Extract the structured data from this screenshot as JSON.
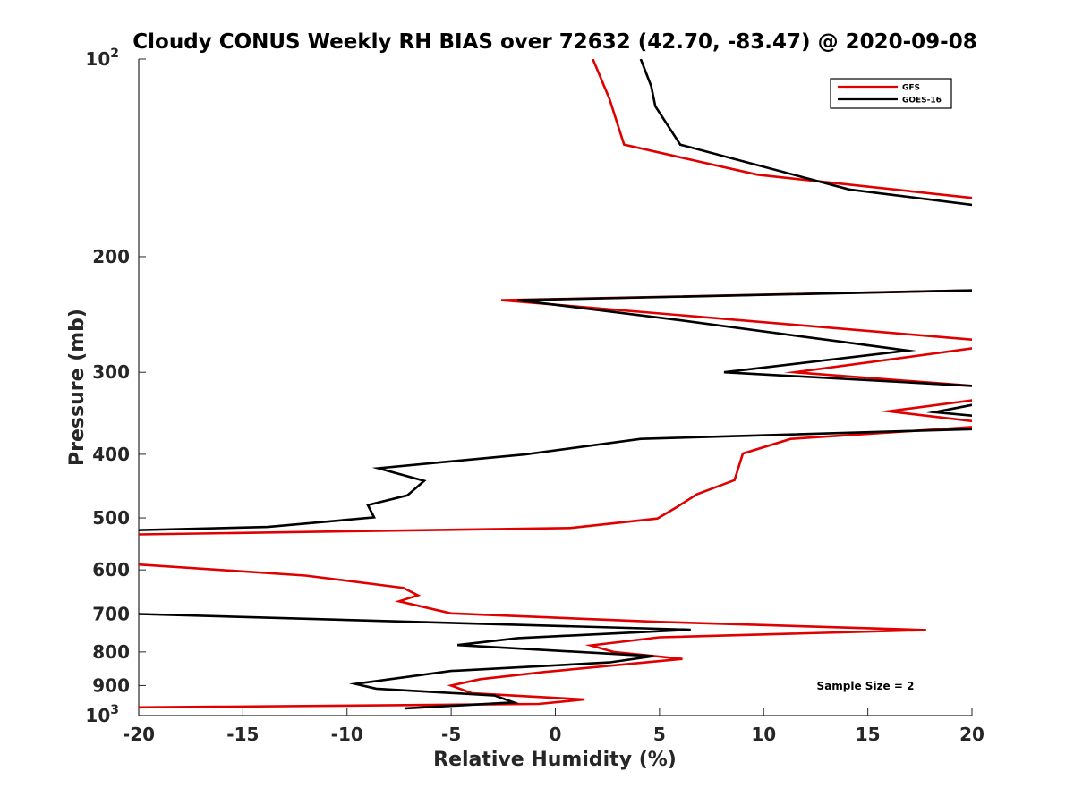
{
  "chart_data": {
    "type": "line",
    "title": "Cloudy CONUS Weekly RH BIAS over 72632 (42.70, -83.47) @ 2020-09-08",
    "xlabel": "Relative Humidity (%)",
    "ylabel": "Pressure (mb)",
    "xlim": [
      -20,
      20
    ],
    "ylim": [
      100,
      1000
    ],
    "yscale": "log",
    "yreversed": true,
    "grid": false,
    "legend_position": "top-right",
    "x_ticks": [
      "-20",
      "-15",
      "-10",
      "-5",
      "0",
      "5",
      "10",
      "15",
      "20"
    ],
    "y_ticks": [
      {
        "value": 100,
        "base": "10",
        "exp": "2"
      },
      {
        "value": 200,
        "label": "200"
      },
      {
        "value": 300,
        "label": "300"
      },
      {
        "value": 400,
        "label": "400"
      },
      {
        "value": 500,
        "label": "500"
      },
      {
        "value": 600,
        "label": "600"
      },
      {
        "value": 700,
        "label": "700"
      },
      {
        "value": 800,
        "label": "800"
      },
      {
        "value": 900,
        "label": "900"
      },
      {
        "value": 1000,
        "base": "10",
        "exp": "3"
      }
    ],
    "annotation": "Sample Size = 2",
    "series": [
      {
        "name": "GFS",
        "color": "#e00000",
        "points": [
          [
            1.8,
            100
          ],
          [
            2.6,
            115
          ],
          [
            3.3,
            135
          ],
          [
            9.7,
            150
          ],
          [
            20.2,
            163
          ],
          [
            20.3,
            225
          ],
          [
            -2.6,
            233
          ],
          [
            20.3,
            268
          ],
          [
            20.3,
            275
          ],
          [
            11.5,
            300
          ],
          [
            20.3,
            315
          ],
          [
            20.3,
            330
          ],
          [
            16.0,
            344
          ],
          [
            20.3,
            357
          ],
          [
            20.3,
            363
          ],
          [
            11.3,
            379
          ],
          [
            9.0,
            399
          ],
          [
            8.6,
            438
          ],
          [
            6.8,
            460
          ],
          [
            5.8,
            482
          ],
          [
            4.9,
            501
          ],
          [
            0.7,
            518
          ],
          [
            -20.3,
            530
          ],
          [
            -20.3,
            588
          ],
          [
            -12.0,
            612
          ],
          [
            -7.3,
            639
          ],
          [
            -6.6,
            656
          ],
          [
            -7.5,
            670
          ],
          [
            -5.0,
            699
          ],
          [
            5.0,
            720
          ],
          [
            17.8,
            741
          ],
          [
            5.0,
            760
          ],
          [
            1.7,
            782
          ],
          [
            2.8,
            800
          ],
          [
            6.1,
            820
          ],
          [
            -0.5,
            858
          ],
          [
            -3.6,
            880
          ],
          [
            -5.0,
            900
          ],
          [
            -4.0,
            925
          ],
          [
            1.4,
            945
          ],
          [
            -0.8,
            960
          ],
          [
            -20.3,
            972
          ]
        ]
      },
      {
        "name": "GOES-16",
        "color": "#000000",
        "points": [
          [
            4.1,
            100
          ],
          [
            4.6,
            110
          ],
          [
            4.8,
            118
          ],
          [
            6.0,
            135
          ],
          [
            14.1,
            158
          ],
          [
            20.2,
            167
          ],
          [
            20.3,
            225
          ],
          [
            -1.8,
            233
          ],
          [
            6.0,
            250
          ],
          [
            13.9,
            270
          ],
          [
            16.9,
            278
          ],
          [
            8.1,
            300
          ],
          [
            20.3,
            315
          ],
          [
            20.3,
            335
          ],
          [
            18.2,
            345
          ],
          [
            20.3,
            350
          ],
          [
            20.3,
            366
          ],
          [
            4.1,
            379
          ],
          [
            -1.4,
            400
          ],
          [
            -8.5,
            420
          ],
          [
            -6.3,
            439
          ],
          [
            -7.1,
            462
          ],
          [
            -9.0,
            478
          ],
          [
            -8.7,
            499
          ],
          [
            -13.8,
            516
          ],
          [
            -20.3,
            522
          ],
          [
            -20.3,
            700
          ],
          [
            6.5,
            740
          ],
          [
            -1.8,
            762
          ],
          [
            -4.7,
            781
          ],
          [
            4.7,
            812
          ],
          [
            2.6,
            830
          ],
          [
            -5.0,
            855
          ],
          [
            -9.6,
            895
          ],
          [
            -8.6,
            910
          ],
          [
            -2.9,
            932
          ],
          [
            -2.0,
            955
          ],
          [
            -7.2,
            975
          ]
        ]
      }
    ]
  }
}
